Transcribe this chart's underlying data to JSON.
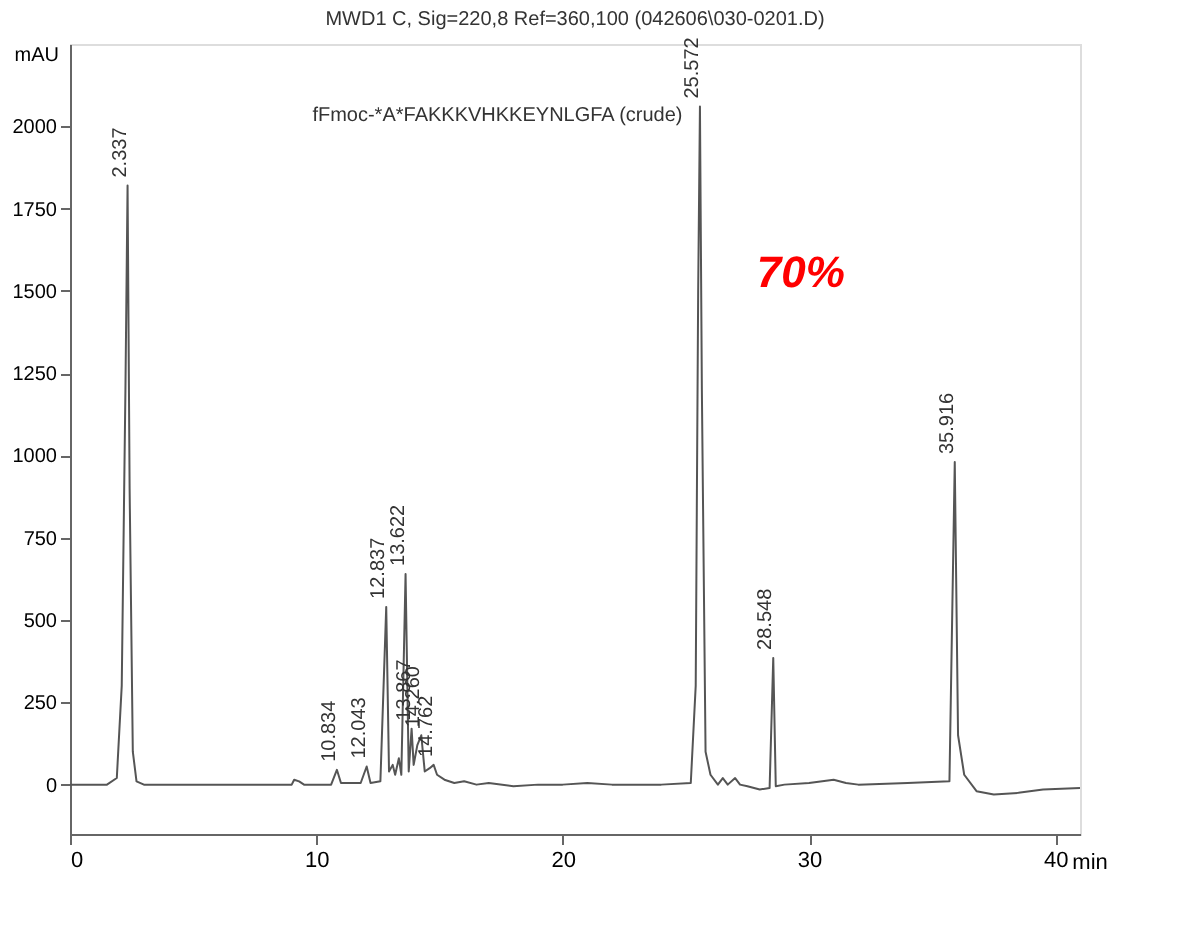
{
  "chart_data": {
    "type": "line",
    "title": "MWD1 C, Sig=220,8 Ref=360,100 (042606\\030-0201.D)",
    "xlabel": "min",
    "ylabel": "mAU",
    "xlim": [
      0,
      41
    ],
    "ylim": [
      -150,
      2250
    ],
    "xticks": [
      0,
      10,
      20,
      30,
      40
    ],
    "yticks": [
      0,
      250,
      500,
      750,
      1000,
      1250,
      1500,
      1750,
      2000
    ],
    "grid": false,
    "marker": "none",
    "line_style": "solid",
    "series": [
      {
        "color": "#555555",
        "x": [
          0,
          1.5,
          1.9,
          2.1,
          2.25,
          2.337,
          2.42,
          2.55,
          2.7,
          3,
          9,
          9.1,
          9.3,
          9.5,
          10.6,
          10.834,
          11.0,
          11.8,
          12.043,
          12.2,
          12.6,
          12.837,
          12.95,
          13.1,
          13.2,
          13.35,
          13.45,
          13.622,
          13.75,
          13.867,
          13.95,
          14.1,
          14.26,
          14.4,
          14.6,
          14.762,
          14.9,
          15.2,
          15.6,
          16,
          16.5,
          17,
          18,
          19,
          20,
          21,
          22,
          24,
          25.2,
          25.4,
          25.5,
          25.572,
          25.65,
          25.8,
          26,
          26.3,
          26.5,
          26.7,
          27,
          27.2,
          27.5,
          28,
          28.4,
          28.548,
          28.65,
          29,
          30,
          31,
          31.5,
          32,
          34,
          35.7,
          35.916,
          36.05,
          36.3,
          36.8,
          37.5,
          38.5,
          39.5,
          41
        ],
        "values": [
          0,
          0,
          20,
          300,
          1200,
          1820,
          900,
          100,
          10,
          0,
          0,
          15,
          10,
          0,
          0,
          45,
          5,
          5,
          55,
          5,
          10,
          540,
          40,
          60,
          30,
          80,
          30,
          640,
          40,
          170,
          60,
          120,
          150,
          40,
          50,
          60,
          30,
          15,
          5,
          10,
          0,
          5,
          -5,
          0,
          0,
          5,
          0,
          0,
          5,
          300,
          1500,
          2060,
          1200,
          100,
          30,
          0,
          20,
          0,
          20,
          0,
          -5,
          -15,
          -10,
          385,
          -5,
          0,
          5,
          15,
          5,
          0,
          5,
          10,
          980,
          150,
          30,
          -20,
          -30,
          -25,
          -15,
          -10
        ]
      }
    ],
    "annotations": [
      "fFmoc-*A*FAKKKVHKKEYNLGFA (crude)",
      "70%",
      {
        "text": "2.337",
        "x": 2.337,
        "y": 1820
      },
      {
        "text": "10.834",
        "x": 10.834,
        "y": 45
      },
      {
        "text": "12.043",
        "x": 12.043,
        "y": 55
      },
      {
        "text": "12.837",
        "x": 12.837,
        "y": 540
      },
      {
        "text": "13.622",
        "x": 13.622,
        "y": 640
      },
      {
        "text": "13.867",
        "x": 13.867,
        "y": 170
      },
      {
        "text": "14.260",
        "x": 14.26,
        "y": 150
      },
      {
        "text": "14.762",
        "x": 14.762,
        "y": 60
      },
      {
        "text": "25.572",
        "x": 25.572,
        "y": 2060
      },
      {
        "text": "28.548",
        "x": 28.548,
        "y": 385
      },
      {
        "text": "35.916",
        "x": 35.916,
        "y": 980
      }
    ]
  }
}
